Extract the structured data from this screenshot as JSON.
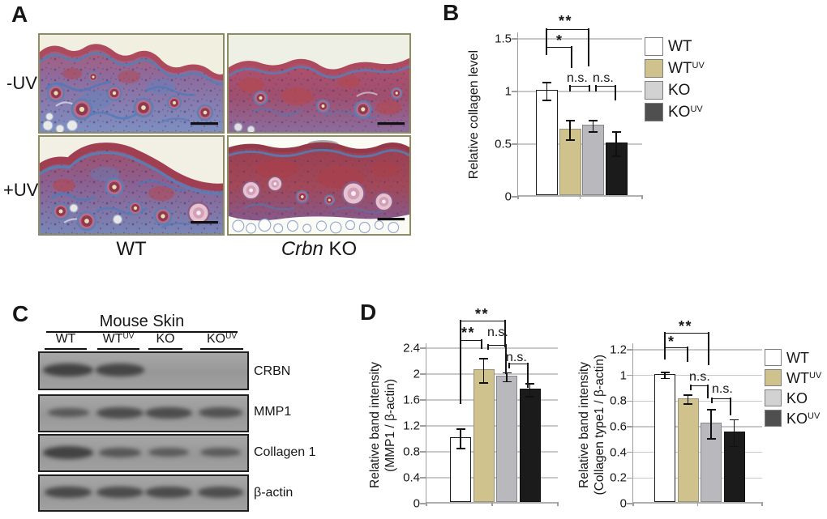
{
  "figure": {
    "panels": {
      "a": "A",
      "b": "B",
      "c": "C",
      "d": "D"
    },
    "legend": {
      "items": [
        {
          "base": "WT",
          "sup": ""
        },
        {
          "base": "WT",
          "sup": "UV"
        },
        {
          "base": "KO",
          "sup": ""
        },
        {
          "base": "KO",
          "sup": "UV"
        }
      ],
      "swatch_colors": [
        "#ffffff",
        "#cfc28d",
        "#d2d2d2",
        "#4f4f4f"
      ]
    }
  },
  "panelA": {
    "row_labels": [
      "-UV",
      "+UV"
    ],
    "col_label_wt": "WT",
    "col_label_ko_italic": "Crbn",
    "col_label_ko_rest": " KO"
  },
  "panelC": {
    "title": "Mouse Skin",
    "lanes": [
      {
        "base": "WT",
        "sup": ""
      },
      {
        "base": "WT",
        "sup": "UV"
      },
      {
        "base": "KO",
        "sup": ""
      },
      {
        "base": "KO",
        "sup": "UV"
      }
    ],
    "blots": [
      {
        "target": "CRBN",
        "band_intensities": [
          1,
          0.92,
          0,
          0
        ]
      },
      {
        "target": "MMP1",
        "band_intensities": [
          0.5,
          0.78,
          0.78,
          0.65
        ]
      },
      {
        "target": "Collagen 1",
        "band_intensities": [
          1,
          0.55,
          0.45,
          0.45
        ]
      },
      {
        "target": "β-actin",
        "band_intensities": [
          0.85,
          0.8,
          0.8,
          0.75
        ]
      }
    ]
  },
  "chart_data": [
    {
      "id": "B",
      "type": "bar",
      "ylabel": "Relative collagen level",
      "categories": [
        "WT",
        "WT^UV",
        "KO",
        "KO^UV"
      ],
      "values": [
        1.0,
        0.63,
        0.67,
        0.5
      ],
      "errors": [
        0.09,
        0.1,
        0.06,
        0.12
      ],
      "tick_values": [
        0,
        0.5,
        1,
        1.5
      ],
      "tick_labels": [
        "0",
        "0.5",
        "1",
        "1.5"
      ],
      "ylim": [
        0,
        1.56
      ],
      "grid": true,
      "legend_position": "right",
      "bar_colors": [
        "#ffffff",
        "#cfc28d",
        "#b9b9bd",
        "#1b1b1b"
      ],
      "bar_borders": [
        "#1c1c1c",
        "#99937b",
        "#85858b",
        "#101010"
      ],
      "annotations": [
        {
          "label": "**",
          "pair": "WT vs KO"
        },
        {
          "label": "*",
          "pair": "WT vs WT^UV"
        },
        {
          "label": "n.s.",
          "pair": "WT^UV vs KO"
        },
        {
          "label": "n.s.",
          "pair": "KO vs KO^UV"
        }
      ]
    },
    {
      "id": "D-left",
      "type": "bar",
      "ylabel_line1": "Relative band intensity",
      "ylabel_line2": "(MMP1 / β-actin)",
      "categories": [
        "WT",
        "WT^UV",
        "KO",
        "KO^UV"
      ],
      "values": [
        1.0,
        2.05,
        1.95,
        1.75
      ],
      "errors": [
        0.16,
        0.2,
        0.08,
        0.11
      ],
      "tick_values": [
        0,
        0.4,
        0.8,
        1.2,
        1.6,
        2,
        2.4
      ],
      "tick_labels": [
        "0",
        "0.4",
        "0.8",
        "1.2",
        "1.6",
        "2",
        "2.4"
      ],
      "ylim": [
        0,
        2.47
      ],
      "grid": true,
      "legend_position": "none",
      "bar_colors": [
        "#ffffff",
        "#cfc28d",
        "#b9b9bd",
        "#1b1b1b"
      ],
      "bar_borders": [
        "#1c1c1c",
        "#99937b",
        "#85858b",
        "#101010"
      ],
      "annotations": [
        {
          "label": "**",
          "pair": "WT vs KO"
        },
        {
          "label": "**",
          "pair": "WT vs WT^UV"
        },
        {
          "label": "n.s.",
          "pair": "WT^UV vs KO"
        },
        {
          "label": "n.s.",
          "pair": "KO vs KO^UV"
        }
      ]
    },
    {
      "id": "D-right",
      "type": "bar",
      "ylabel_line1": "Relative band intensity",
      "ylabel_line2": "(Collagen type1 / β-actin)",
      "categories": [
        "WT",
        "WT^UV",
        "KO",
        "KO^UV"
      ],
      "values": [
        1.0,
        0.81,
        0.62,
        0.55
      ],
      "errors": [
        0.03,
        0.04,
        0.12,
        0.11
      ],
      "tick_values": [
        0,
        0.2,
        0.4,
        0.6,
        0.8,
        1,
        1.2
      ],
      "tick_labels": [
        "0",
        "0.2",
        "0.4",
        "0.6",
        "0.8",
        "1",
        "1.2"
      ],
      "ylim": [
        0,
        1.25
      ],
      "grid": true,
      "legend_position": "right",
      "bar_colors": [
        "#ffffff",
        "#cfc28d",
        "#b9b9bd",
        "#1b1b1b"
      ],
      "bar_borders": [
        "#1c1c1c",
        "#99937b",
        "#85858b",
        "#101010"
      ],
      "annotations": [
        {
          "label": "**",
          "pair": "WT vs KO"
        },
        {
          "label": "*",
          "pair": "WT vs WT^UV"
        },
        {
          "label": "n.s.",
          "pair": "WT^UV vs KO"
        },
        {
          "label": "n.s.",
          "pair": "KO vs KO^UV"
        }
      ]
    }
  ]
}
